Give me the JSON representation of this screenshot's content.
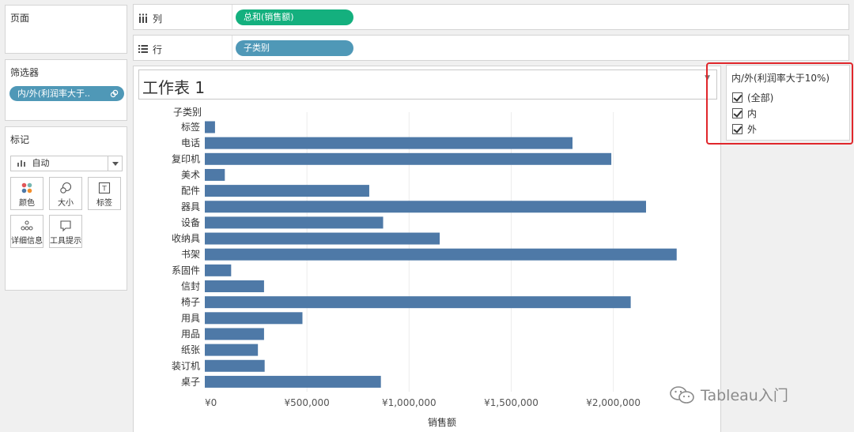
{
  "sidebar": {
    "pages_title": "页面",
    "filters_title": "筛选器",
    "filter_pill": "内/外(利润率大于..",
    "marks_title": "标记",
    "mark_type": "自动",
    "mark_buttons": [
      {
        "label": "颜色",
        "icon": "color-icon"
      },
      {
        "label": "大小",
        "icon": "size-icon"
      },
      {
        "label": "标签",
        "icon": "label-icon"
      },
      {
        "label": "详细信息",
        "icon": "detail-icon"
      },
      {
        "label": "工具提示",
        "icon": "tooltip-icon"
      }
    ]
  },
  "shelves": {
    "columns_label": "列",
    "columns_pill": "总和(销售额)",
    "rows_label": "行",
    "rows_pill": "子类别"
  },
  "sheet": {
    "title": "工作表 1",
    "dropdown": "▼"
  },
  "legend": {
    "title": "内/外(利润率大于10%)",
    "items": [
      "(全部)",
      "内",
      "外"
    ]
  },
  "watermark": "Tableau入门",
  "colors": {
    "bar": "#4e79a7",
    "green_pill": "#14b07e",
    "blue_pill": "#4f98b7",
    "highlight": "#e0262b"
  },
  "chart_data": {
    "type": "bar",
    "orientation": "horizontal",
    "row_header": "子类别",
    "xlabel": "销售额",
    "categories": [
      "标签",
      "电话",
      "复印机",
      "美术",
      "配件",
      "器具",
      "设备",
      "收纳具",
      "书架",
      "系固件",
      "信封",
      "椅子",
      "用具",
      "用品",
      "纸张",
      "装订机",
      "桌子"
    ],
    "values": [
      50000,
      1800000,
      1990000,
      98000,
      805000,
      2160000,
      873000,
      1150000,
      2310000,
      129000,
      290000,
      2085000,
      478000,
      290000,
      260000,
      293000,
      862000
    ],
    "xlim": [
      0,
      2400000
    ],
    "ticks": [
      0,
      500000,
      1000000,
      1500000,
      2000000
    ],
    "tick_labels": [
      "¥0",
      "¥500,000",
      "¥1,000,000",
      "¥1,500,000",
      "¥2,000,000"
    ],
    "grid": true
  }
}
